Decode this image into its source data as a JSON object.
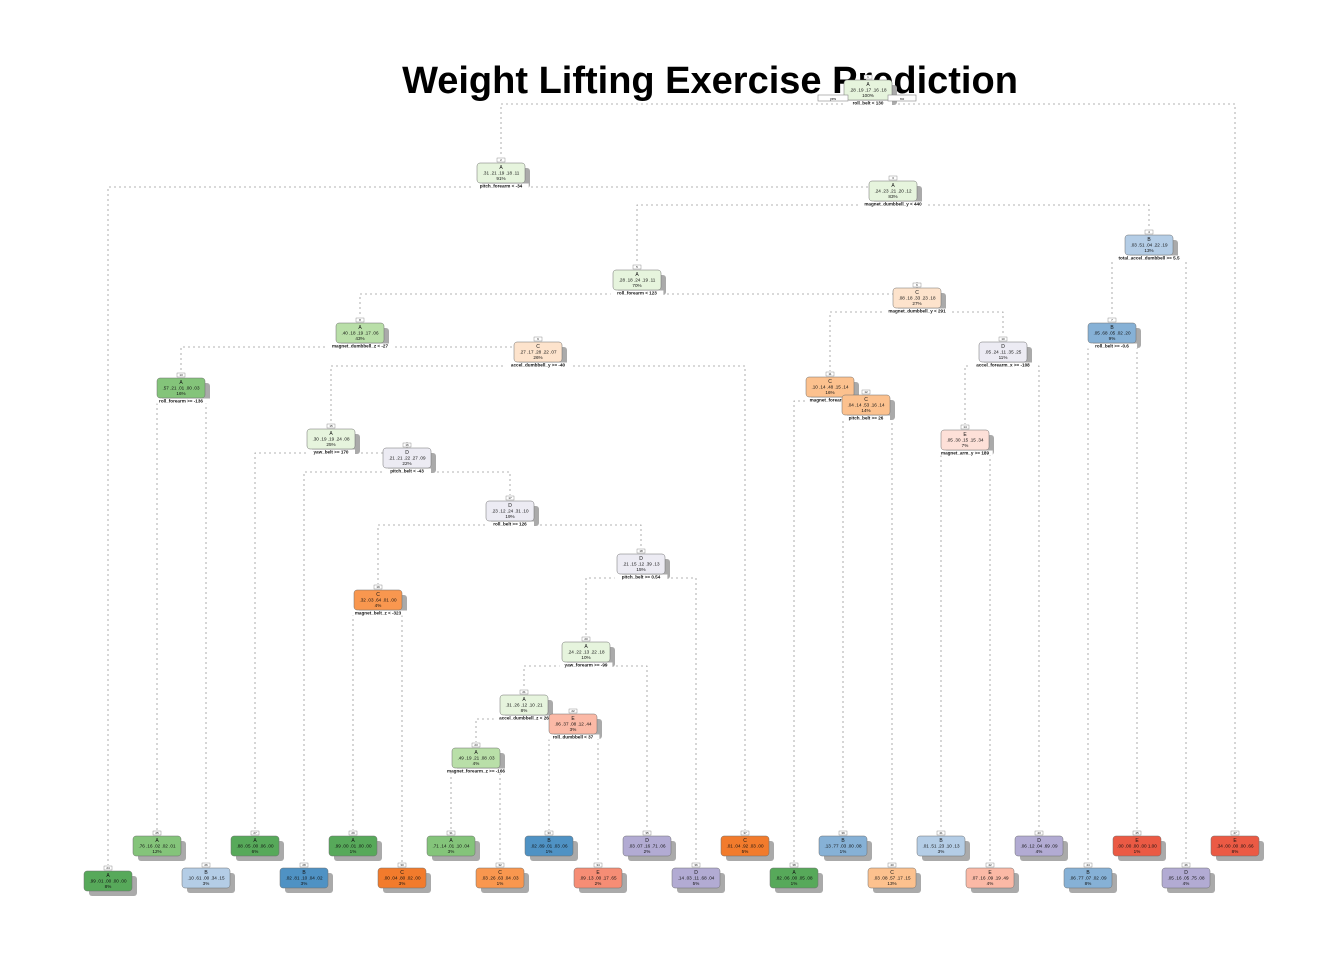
{
  "title": "Weight Lifting Exercise Prediction",
  "root_labels": {
    "yes": "yes",
    "no": "no"
  },
  "class_colors": {
    "A": [
      "#e6f4dd",
      "#b9dfa8",
      "#84c47a",
      "#57a95a"
    ],
    "B": [
      "#dde8f5",
      "#b4cde6",
      "#86b1d6",
      "#4f92c4"
    ],
    "C": [
      "#fde3cc",
      "#fcc18e",
      "#f9974f",
      "#f27b2c"
    ],
    "D": [
      "#ecebf3",
      "#d0cde4",
      "#b2abd3",
      "#9a90c2"
    ],
    "E": [
      "#fde0d8",
      "#fbb9a6",
      "#f68d75",
      "#eb5a44"
    ]
  },
  "nodes": [
    {
      "id": "1",
      "cls": "A",
      "probs": ".28 .19 .17 .16 .18",
      "pct": "100%",
      "split": "roll_belt < 130",
      "shade": 0
    },
    {
      "id": "2",
      "cls": "A",
      "probs": ".31 .21 .19 .18 .11",
      "pct": "91%",
      "split": "pitch_forearm < -34",
      "shade": 0
    },
    {
      "id": "3",
      "cls": "A",
      "probs": ".24 .23 .21 .20 .12",
      "pct": "83%",
      "split": "magnet_dumbbell_y < 440",
      "shade": 0
    },
    {
      "id": "4",
      "cls": "B",
      "probs": ".03 .51 .04 .22 .19",
      "pct": "13%",
      "split": "total_accel_dumbbell >= 5.5",
      "shade": 1
    },
    {
      "id": "5",
      "cls": "A",
      "probs": ".28 .18 .24 .19 .11",
      "pct": "70%",
      "split": "roll_forearm < 123",
      "shade": 0
    },
    {
      "id": "6",
      "cls": "C",
      "probs": ".08 .18 .33 .23 .18",
      "pct": "27%",
      "split": "magnet_dumbbell_y < 291",
      "shade": 0
    },
    {
      "id": "7",
      "cls": "B",
      "probs": ".05 .68 .05 .02 .20",
      "pct": "9%",
      "split": "roll_belt >= -0.6",
      "shade": 2
    },
    {
      "id": "8",
      "cls": "A",
      "probs": ".40 .18 .19 .17 .06",
      "pct": "43%",
      "split": "magnet_dumbbell_z < -27",
      "shade": 1
    },
    {
      "id": "9",
      "cls": "C",
      "probs": ".27 .17 .28 .22 .07",
      "pct": "26%",
      "split": "accel_dumbbell_y >= -40",
      "shade": 0
    },
    {
      "id": "10",
      "cls": "D",
      "probs": ".05 .24 .11 .35 .25",
      "pct": "11%",
      "split": "accel_forearm_x >= -108",
      "shade": 0
    },
    {
      "id": "11",
      "cls": "C",
      "probs": ".10 .14 .48 .15 .14",
      "pct": "16%",
      "split": "magnet_forearm_z",
      "shade": 1
    },
    {
      "id": "12",
      "cls": "C",
      "probs": ".04 .14 .53 .16 .14",
      "pct": "14%",
      "split": "pitch_belt >= 26",
      "shade": 1
    },
    {
      "id": "13",
      "cls": "A",
      "probs": ".57 .21 .01 .00 .03",
      "pct": "16%",
      "split": "roll_forearm >= -136",
      "shade": 2
    },
    {
      "id": "14",
      "cls": "E",
      "probs": ".05 .30 .15 .15 .34",
      "pct": "7%",
      "split": "magnet_arm_y >= 189",
      "shade": 0
    },
    {
      "id": "15",
      "cls": "A",
      "probs": ".30 .19 .19 .24 .08",
      "pct": "25%",
      "split": "yaw_belt >= 170",
      "shade": 0
    },
    {
      "id": "16",
      "cls": "D",
      "probs": ".21 .21 .22 .27 .09",
      "pct": "22%",
      "split": "pitch_belt < -43",
      "shade": 0
    },
    {
      "id": "17",
      "cls": "D",
      "probs": ".23 .12 .24 .31 .10",
      "pct": "19%",
      "split": "roll_belt >= 126",
      "shade": 0
    },
    {
      "id": "18",
      "cls": "D",
      "probs": ".21 .15 .12 .39 .13",
      "pct": "15%",
      "split": "pitch_belt >= 0.54",
      "shade": 0
    },
    {
      "id": "19",
      "cls": "C",
      "probs": ".32 .03 .64 .01 .00",
      "pct": "4%",
      "split": "magnet_belt_z < -323",
      "shade": 2
    },
    {
      "id": "20",
      "cls": "A",
      "probs": ".24 .22 .13 .22 .18",
      "pct": "10%",
      "split": "yaw_forearm >= -99",
      "shade": 0
    },
    {
      "id": "21",
      "cls": "A",
      "probs": ".31 .26 .12 .10 .21",
      "pct": "8%",
      "split": "accel_dumbbell_z < 26",
      "shade": 0
    },
    {
      "id": "22",
      "cls": "E",
      "probs": ".06 .37 .08 .12 .44",
      "pct": "3%",
      "split": "roll_dumbbell < 37",
      "shade": 1
    },
    {
      "id": "23",
      "cls": "A",
      "probs": ".49 .19 .21 .08 .03",
      "pct": "4%",
      "split": "magnet_forearm_z >= -166",
      "shade": 1
    },
    {
      "id": "24",
      "cls": "A",
      "probs": ".99 .01 .00 .00 .00",
      "pct": "8%",
      "split": "",
      "shade": 3
    },
    {
      "id": "25",
      "cls": "A",
      "probs": ".76 .16 .02 .02 .01",
      "pct": "12%",
      "split": "",
      "shade": 2
    },
    {
      "id": "26",
      "cls": "B",
      "probs": ".10 .61 .00 .34 .15",
      "pct": "3%",
      "split": "",
      "shade": 1
    },
    {
      "id": "27",
      "cls": "A",
      "probs": ".88 .05 .00 .06 .00",
      "pct": "6%",
      "split": "",
      "shade": 3
    },
    {
      "id": "28",
      "cls": "B",
      "probs": ".02 .81 .10 .04 .02",
      "pct": "3%",
      "split": "",
      "shade": 3
    },
    {
      "id": "29",
      "cls": "A",
      "probs": ".99 .00 .01 .00 .00",
      "pct": "1%",
      "split": "",
      "shade": 3
    },
    {
      "id": "30",
      "cls": "C",
      "probs": ".00 .04 .80 .02 .00",
      "pct": "3%",
      "split": "",
      "shade": 3
    },
    {
      "id": "31",
      "cls": "A",
      "probs": ".71 .14 .01 .10 .04",
      "pct": "3%",
      "split": "",
      "shade": 2
    },
    {
      "id": "32",
      "cls": "C",
      "probs": ".03 .26 .63 .04 .03",
      "pct": "1%",
      "split": "",
      "shade": 2
    },
    {
      "id": "33",
      "cls": "B",
      "probs": ".02 .89 .01 .03 .06",
      "pct": "1%",
      "split": "",
      "shade": 3
    },
    {
      "id": "34",
      "cls": "E",
      "probs": ".09 .13 .00 .17 .65",
      "pct": "2%",
      "split": "",
      "shade": 2
    },
    {
      "id": "35",
      "cls": "D",
      "probs": ".03 .07 .16 .71 .06",
      "pct": "2%",
      "split": "",
      "shade": 2
    },
    {
      "id": "36",
      "cls": "D",
      "probs": ".14 .03 .11 .68 .04",
      "pct": "5%",
      "split": "",
      "shade": 2
    },
    {
      "id": "37",
      "cls": "C",
      "probs": ".01 .04 .92 .03 .00",
      "pct": "5%",
      "split": "",
      "shade": 3
    },
    {
      "id": "38",
      "cls": "A",
      "probs": ".82 .06 .00 .05 .08",
      "pct": "1%",
      "split": "",
      "shade": 3
    },
    {
      "id": "39",
      "cls": "B",
      "probs": ".13 .77 .03 .00 .08",
      "pct": "1%",
      "split": "",
      "shade": 2
    },
    {
      "id": "40",
      "cls": "C",
      "probs": ".03 .08 .57 .17 .15",
      "pct": "13%",
      "split": "",
      "shade": 1
    },
    {
      "id": "41",
      "cls": "B",
      "probs": ".01 .51 .23 .10 .13",
      "pct": "3%",
      "split": "",
      "shade": 1
    },
    {
      "id": "42",
      "cls": "E",
      "probs": ".07 .16 .09 .19 .49",
      "pct": "4%",
      "split": "",
      "shade": 1
    },
    {
      "id": "43",
      "cls": "D",
      "probs": ".06 .12 .04 .69 .09",
      "pct": "4%",
      "split": "",
      "shade": 2
    },
    {
      "id": "44",
      "cls": "B",
      "probs": ".06 .77 .07 .02 .09",
      "pct": "8%",
      "split": "",
      "shade": 2
    },
    {
      "id": "45",
      "cls": "E",
      "probs": ".00 .00 .00 .00 1.00",
      "pct": "1%",
      "split": "",
      "shade": 3
    },
    {
      "id": "46",
      "cls": "D",
      "probs": ".05 .16 .05 .75 .08",
      "pct": "4%",
      "split": "",
      "shade": 2
    },
    {
      "id": "47",
      "cls": "E",
      "probs": ".34 .00 .00 .00 .66",
      "pct": "8%",
      "split": "",
      "shade": 3
    }
  ]
}
